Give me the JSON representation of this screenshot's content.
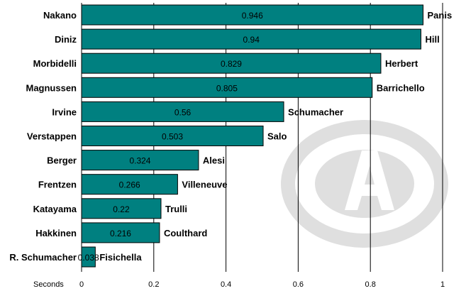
{
  "chart_data": {
    "type": "bar",
    "orientation": "horizontal",
    "xlabel": "Seconds",
    "xlim": [
      0,
      1
    ],
    "xticks": [
      "0",
      "0.2",
      "0.4",
      "0.6",
      "0.8",
      "1"
    ],
    "grid": true,
    "bar_color": "#008080",
    "categories": [
      "Nakano",
      "Diniz",
      "Morbidelli",
      "Magnussen",
      "Irvine",
      "Verstappen",
      "Berger",
      "Frentzen",
      "Katayama",
      "Hakkinen",
      "R. Schumacher"
    ],
    "teammates": [
      "Panis",
      "Hill",
      "Herbert",
      "Barrichello",
      "Schumacher",
      "Salo",
      "Alesi",
      "Villeneuve",
      "Trulli",
      "Coulthard",
      "Fisichella"
    ],
    "values": [
      0.946,
      0.94,
      0.829,
      0.805,
      0.56,
      0.503,
      0.324,
      0.266,
      0.22,
      0.216,
      0.038
    ],
    "value_labels": [
      "0.946",
      "0.94",
      "0.829",
      "0.805",
      "0.56",
      "0.503",
      "0.324",
      "0.266",
      "0.22",
      "0.216",
      "0.038"
    ]
  }
}
